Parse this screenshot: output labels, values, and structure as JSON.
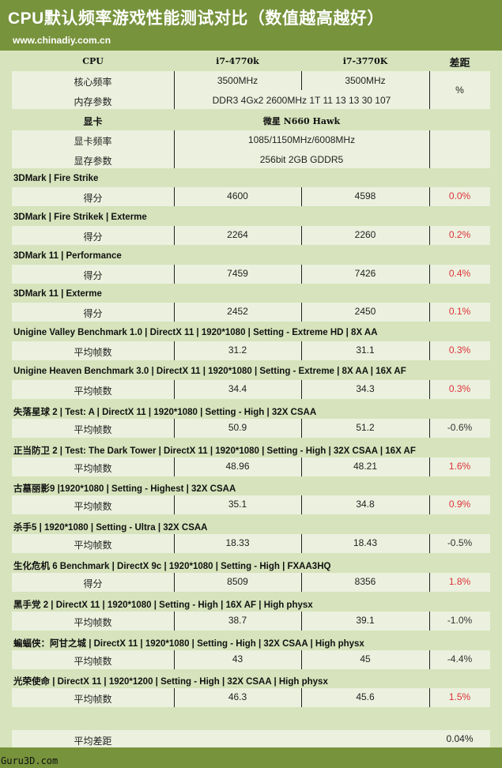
{
  "header": {
    "title": "CPU默认频率游戏性能测试对比（数值越高越好）",
    "site": "www.chinadiy.com.cn"
  },
  "colors": {
    "band": "#77933c",
    "body": "#d6e3bc",
    "row": "#ebf1de",
    "positive": "#e0303a"
  },
  "cpu": {
    "label": "CPU",
    "a": "i7-4770k",
    "b": "i7-3770K",
    "diff": "差距",
    "freq_label": "核心频率",
    "freq_a": "3500MHz",
    "freq_b": "3500MHz",
    "mem_label": "内存参数",
    "mem": "DDR3 4Gx2 2600MHz 1T 11 13 13 30 107",
    "unit": "%"
  },
  "gpu": {
    "label": "显卡",
    "name": "微星 N660 Hawk",
    "freq_label": "显卡频率",
    "freq": "1085/1150MHz/6008MHz",
    "mem_label": "显存参数",
    "mem": "256bit 2GB GDDR5"
  },
  "tests": [
    {
      "name": "3DMark | Fire Strike",
      "label": "得分",
      "a": "4600",
      "b": "4598",
      "diff": "0.0%",
      "positive": true
    },
    {
      "name": "3DMark | Fire Strikek | Exterme",
      "label": "得分",
      "a": "2264",
      "b": "2260",
      "diff": "0.2%",
      "positive": true
    },
    {
      "name": "3DMark 11 | Performance",
      "label": "得分",
      "a": "7459",
      "b": "7426",
      "diff": "0.4%",
      "positive": true
    },
    {
      "name": "3DMark 11 | Exterme",
      "label": "得分",
      "a": "2452",
      "b": "2450",
      "diff": "0.1%",
      "positive": true
    },
    {
      "name": "Unigine Valley Benchmark 1.0 | DirectX 11 | 1920*1080 | Setting - Extreme HD | 8X AA",
      "label": "平均帧数",
      "a": "31.2",
      "b": "31.1",
      "diff": "0.3%",
      "positive": true
    },
    {
      "name": "Unigine Heaven Benchmark 3.0 | DirectX 11 | 1920*1080 | Setting - Extreme | 8X AA | 16X AF",
      "label": "平均帧数",
      "a": "34.4",
      "b": "34.3",
      "diff": "0.3%",
      "positive": true
    },
    {
      "name": "失落星球 2 | Test:  A | DirectX 11 | 1920*1080 | Setting - High | 32X CSAA",
      "label": "平均帧数",
      "a": "50.9",
      "b": "51.2",
      "diff": "-0.6%",
      "positive": false
    },
    {
      "name": "正当防卫 2 | Test:  The Dark Tower | DirectX 11 | 1920*1080 | Setting - High | 32X CSAA | 16X AF",
      "label": "平均帧数",
      "a": "48.96",
      "b": "48.21",
      "diff": "1.6%",
      "positive": true
    },
    {
      "name": "古墓丽影9 |1920*1080 | Setting - Highest | 32X CSAA",
      "label": "平均帧数",
      "a": "35.1",
      "b": "34.8",
      "diff": "0.9%",
      "positive": true
    },
    {
      "name": "杀手5 | 1920*1080 | Setting - Ultra | 32X CSAA",
      "label": "平均帧数",
      "a": "18.33",
      "b": "18.43",
      "diff": "-0.5%",
      "positive": false
    },
    {
      "name": "生化危机 6 Benchmark | DirectX 9c | 1920*1080 | Setting - High | FXAA3HQ",
      "label": "得分",
      "a": "8509",
      "b": "8356",
      "diff": "1.8%",
      "positive": true
    },
    {
      "name": "黑手党 2 | DirectX 11 | 1920*1080 | Setting - High | 16X AF | High physx",
      "label": "平均帧数",
      "a": "38.7",
      "b": "39.1",
      "diff": "-1.0%",
      "positive": false
    },
    {
      "name": "蝙蝠侠：阿甘之城 | DirectX 11 | 1920*1080 | Setting - High | 32X CSAA  | High physx",
      "label": "平均帧数",
      "a": "43",
      "b": "45",
      "diff": "-4.4%",
      "positive": false
    },
    {
      "name": "光荣使命 | DirectX 11 | 1920*1200 | Setting - High | 32X CSAA  | High physx",
      "label": "平均帧数",
      "a": "46.3",
      "b": "45.6",
      "diff": "1.5%",
      "positive": true
    }
  ],
  "summary": {
    "label": "平均差距",
    "value": "0.04%"
  },
  "footer": {
    "watermark": "Guru3D.com"
  }
}
